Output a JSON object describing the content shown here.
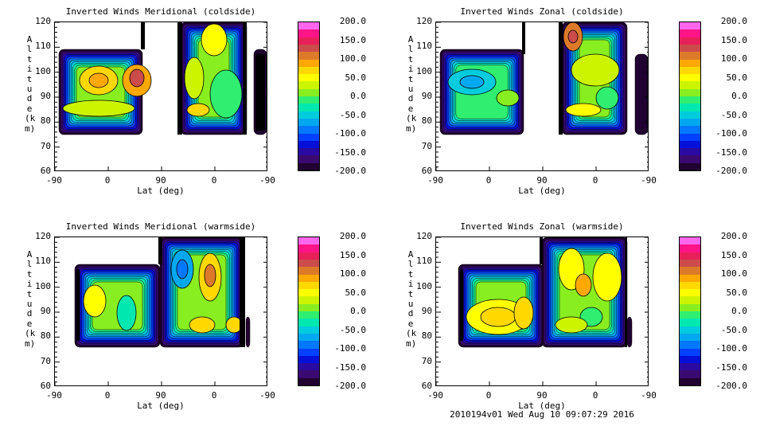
{
  "colorbar": {
    "ticks": [
      "200.0",
      "150.0",
      "100.0",
      "50.0",
      "0.0",
      "-50.0",
      "-100.0",
      "-150.0",
      "-200.0"
    ],
    "range": [
      -200,
      200
    ],
    "colors": [
      "#200030",
      "#3a0a70",
      "#2a0aa0",
      "#0010d8",
      "#0040ff",
      "#0078ff",
      "#00a8f0",
      "#00ccdd",
      "#00e8b0",
      "#30ee70",
      "#88ee20",
      "#ccf400",
      "#ffff00",
      "#ffd800",
      "#ffa800",
      "#dd7a2a",
      "#cc4b4b",
      "#e8205a",
      "#ff1488",
      "#ff66ee"
    ]
  },
  "chart_data": [
    {
      "type": "heatmap",
      "title": "Inverted Winds Meridional (coldside)",
      "xlabel": "Lat (deg)",
      "ylabel": "Altitude (km)",
      "xticks": [
        "-90",
        "0",
        "90",
        "0",
        "-90"
      ],
      "yticks": [
        "120",
        "110",
        "100",
        "90",
        "80",
        "70",
        "60"
      ],
      "ylim": [
        60,
        120
      ],
      "zlim": [
        -200,
        200
      ]
    },
    {
      "type": "heatmap",
      "title": "Inverted Winds Zonal (coldside)",
      "xlabel": "Lat (deg)",
      "ylabel": "Altitude (km)",
      "xticks": [
        "-90",
        "0",
        "90",
        "0",
        "-90"
      ],
      "yticks": [
        "120",
        "110",
        "100",
        "90",
        "80",
        "70",
        "60"
      ],
      "ylim": [
        60,
        120
      ],
      "zlim": [
        -200,
        200
      ]
    },
    {
      "type": "heatmap",
      "title": "Inverted Winds Meridional (warmside)",
      "xlabel": "Lat (deg)",
      "ylabel": "Altitude (km)",
      "xticks": [
        "-90",
        "0",
        "90",
        "0",
        "-90"
      ],
      "yticks": [
        "120",
        "110",
        "100",
        "90",
        "80",
        "70",
        "60"
      ],
      "ylim": [
        60,
        120
      ],
      "zlim": [
        -200,
        200
      ]
    },
    {
      "type": "heatmap",
      "title": "Inverted Winds Zonal (warmside)",
      "xlabel": "Lat (deg)",
      "ylabel": "Altitude (km)",
      "xticks": [
        "-90",
        "0",
        "90",
        "0",
        "-90"
      ],
      "yticks": [
        "120",
        "110",
        "100",
        "90",
        "80",
        "70",
        "60"
      ],
      "ylim": [
        60,
        120
      ],
      "zlim": [
        -200,
        200
      ]
    }
  ],
  "footer": "2010194v01 Wed Aug 10 09:07:29 2016"
}
